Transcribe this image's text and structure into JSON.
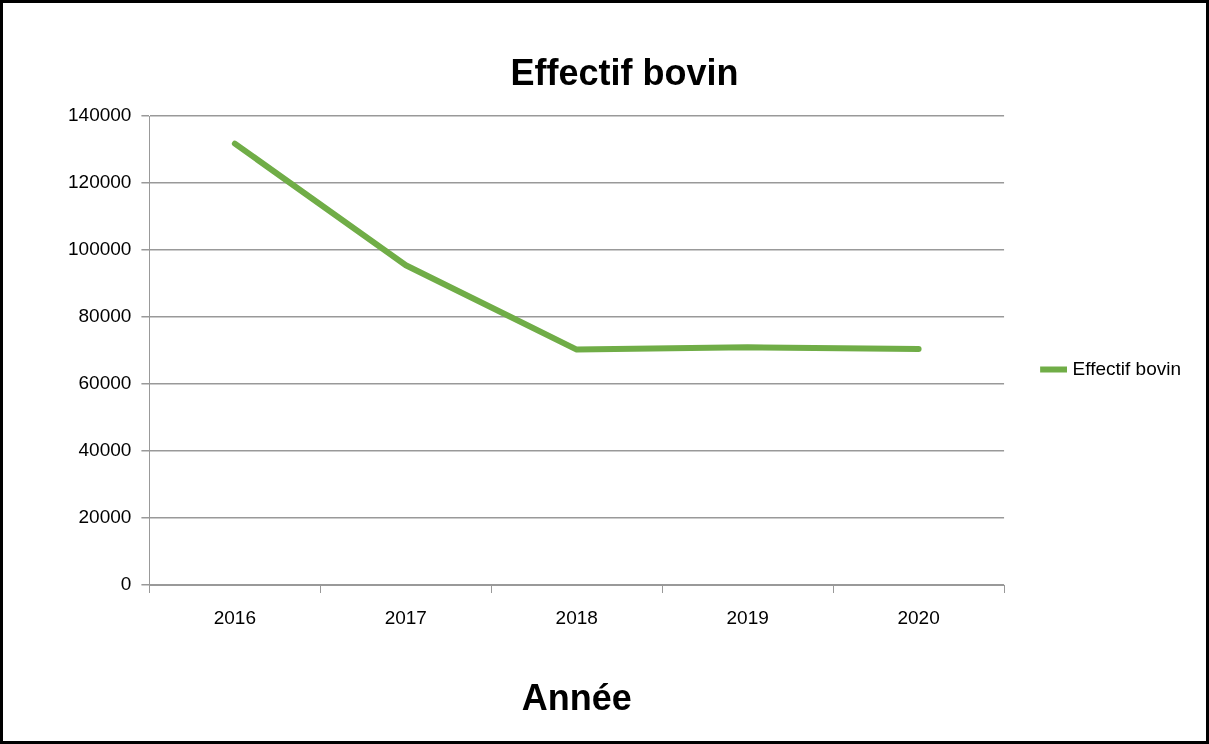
{
  "chart_data": {
    "type": "line",
    "title": "Effectif bovin",
    "xlabel": "Année",
    "categories": [
      "2016",
      "2017",
      "2018",
      "2019",
      "2020"
    ],
    "series": [
      {
        "name": "Effectif bovin",
        "color": "#70ad47",
        "values": [
          131800,
          95500,
          70300,
          71000,
          70500
        ]
      }
    ],
    "ylim": [
      0,
      140000
    ],
    "yticks": [
      0,
      20000,
      40000,
      60000,
      80000,
      100000,
      120000,
      140000
    ],
    "grid": "y",
    "legend": "right",
    "marker": "none",
    "line_style": "solid"
  }
}
